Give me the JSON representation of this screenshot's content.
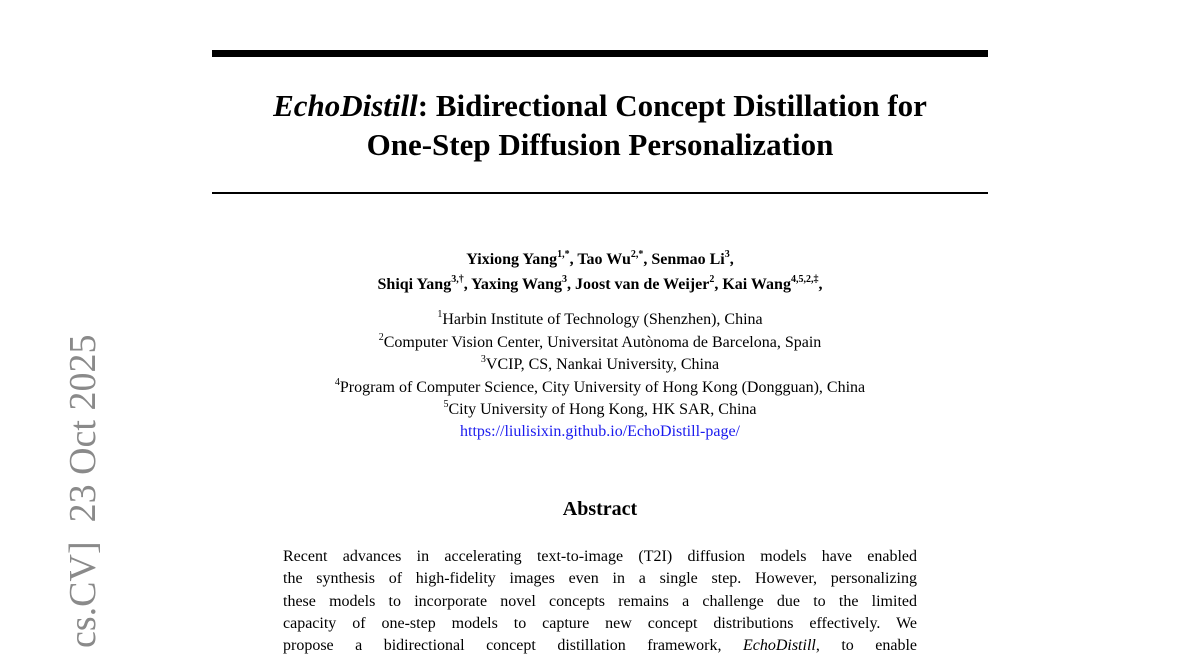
{
  "side_stamp": "cs.CV]  23 Oct 2025",
  "title": {
    "line1_italic": "EchoDistill",
    "line1_rest": ": Bidirectional Concept Distillation for",
    "line2": "One-Step Diffusion Personalization"
  },
  "authors": [
    [
      {
        "name": "Yixiong Yang",
        "sup": "1,*",
        "punct": ","
      },
      {
        "name": "Tao Wu",
        "sup": "2,*",
        "punct": ","
      },
      {
        "name": "Senmao Li",
        "sup": "3",
        "punct": ","
      }
    ],
    [
      {
        "name": "Shiqi Yang",
        "sup": "3,†",
        "punct": ","
      },
      {
        "name": "Yaxing Wang",
        "sup": "3",
        "punct": ","
      },
      {
        "name": "Joost van de Weijer",
        "sup": "2",
        "punct": ","
      },
      {
        "name": "Kai Wang",
        "sup": "4,5,2,‡",
        "punct": ","
      }
    ]
  ],
  "affiliations": [
    {
      "sup": "1",
      "text": "Harbin Institute of Technology (Shenzhen), China"
    },
    {
      "sup": "2",
      "text": "Computer Vision Center, Universitat Autònoma de Barcelona, Spain"
    },
    {
      "sup": "3",
      "text": "VCIP, CS, Nankai University, China"
    },
    {
      "sup": "4",
      "text": "Program of Computer Science, City University of Hong Kong (Dongguan), China"
    },
    {
      "sup": "5",
      "text": "City University of Hong Kong, HK SAR, China"
    }
  ],
  "project_url": "https://liulisixin.github.io/EchoDistill-page/",
  "abstract": {
    "heading": "Abstract",
    "lines": [
      "Recent advances in accelerating text-to-image (T2I) diffusion models have enabled",
      "the synthesis of high-fidelity images even in a single step. However, personalizing",
      "these models to incorporate novel concepts remains a challenge due to the limited",
      "capacity of one-step models to capture new concept distributions effectively. We"
    ],
    "last_line": {
      "before": "propose a bidirectional concept distillation framework,",
      "italic": "EchoDistill",
      "after": ", to enable"
    }
  }
}
